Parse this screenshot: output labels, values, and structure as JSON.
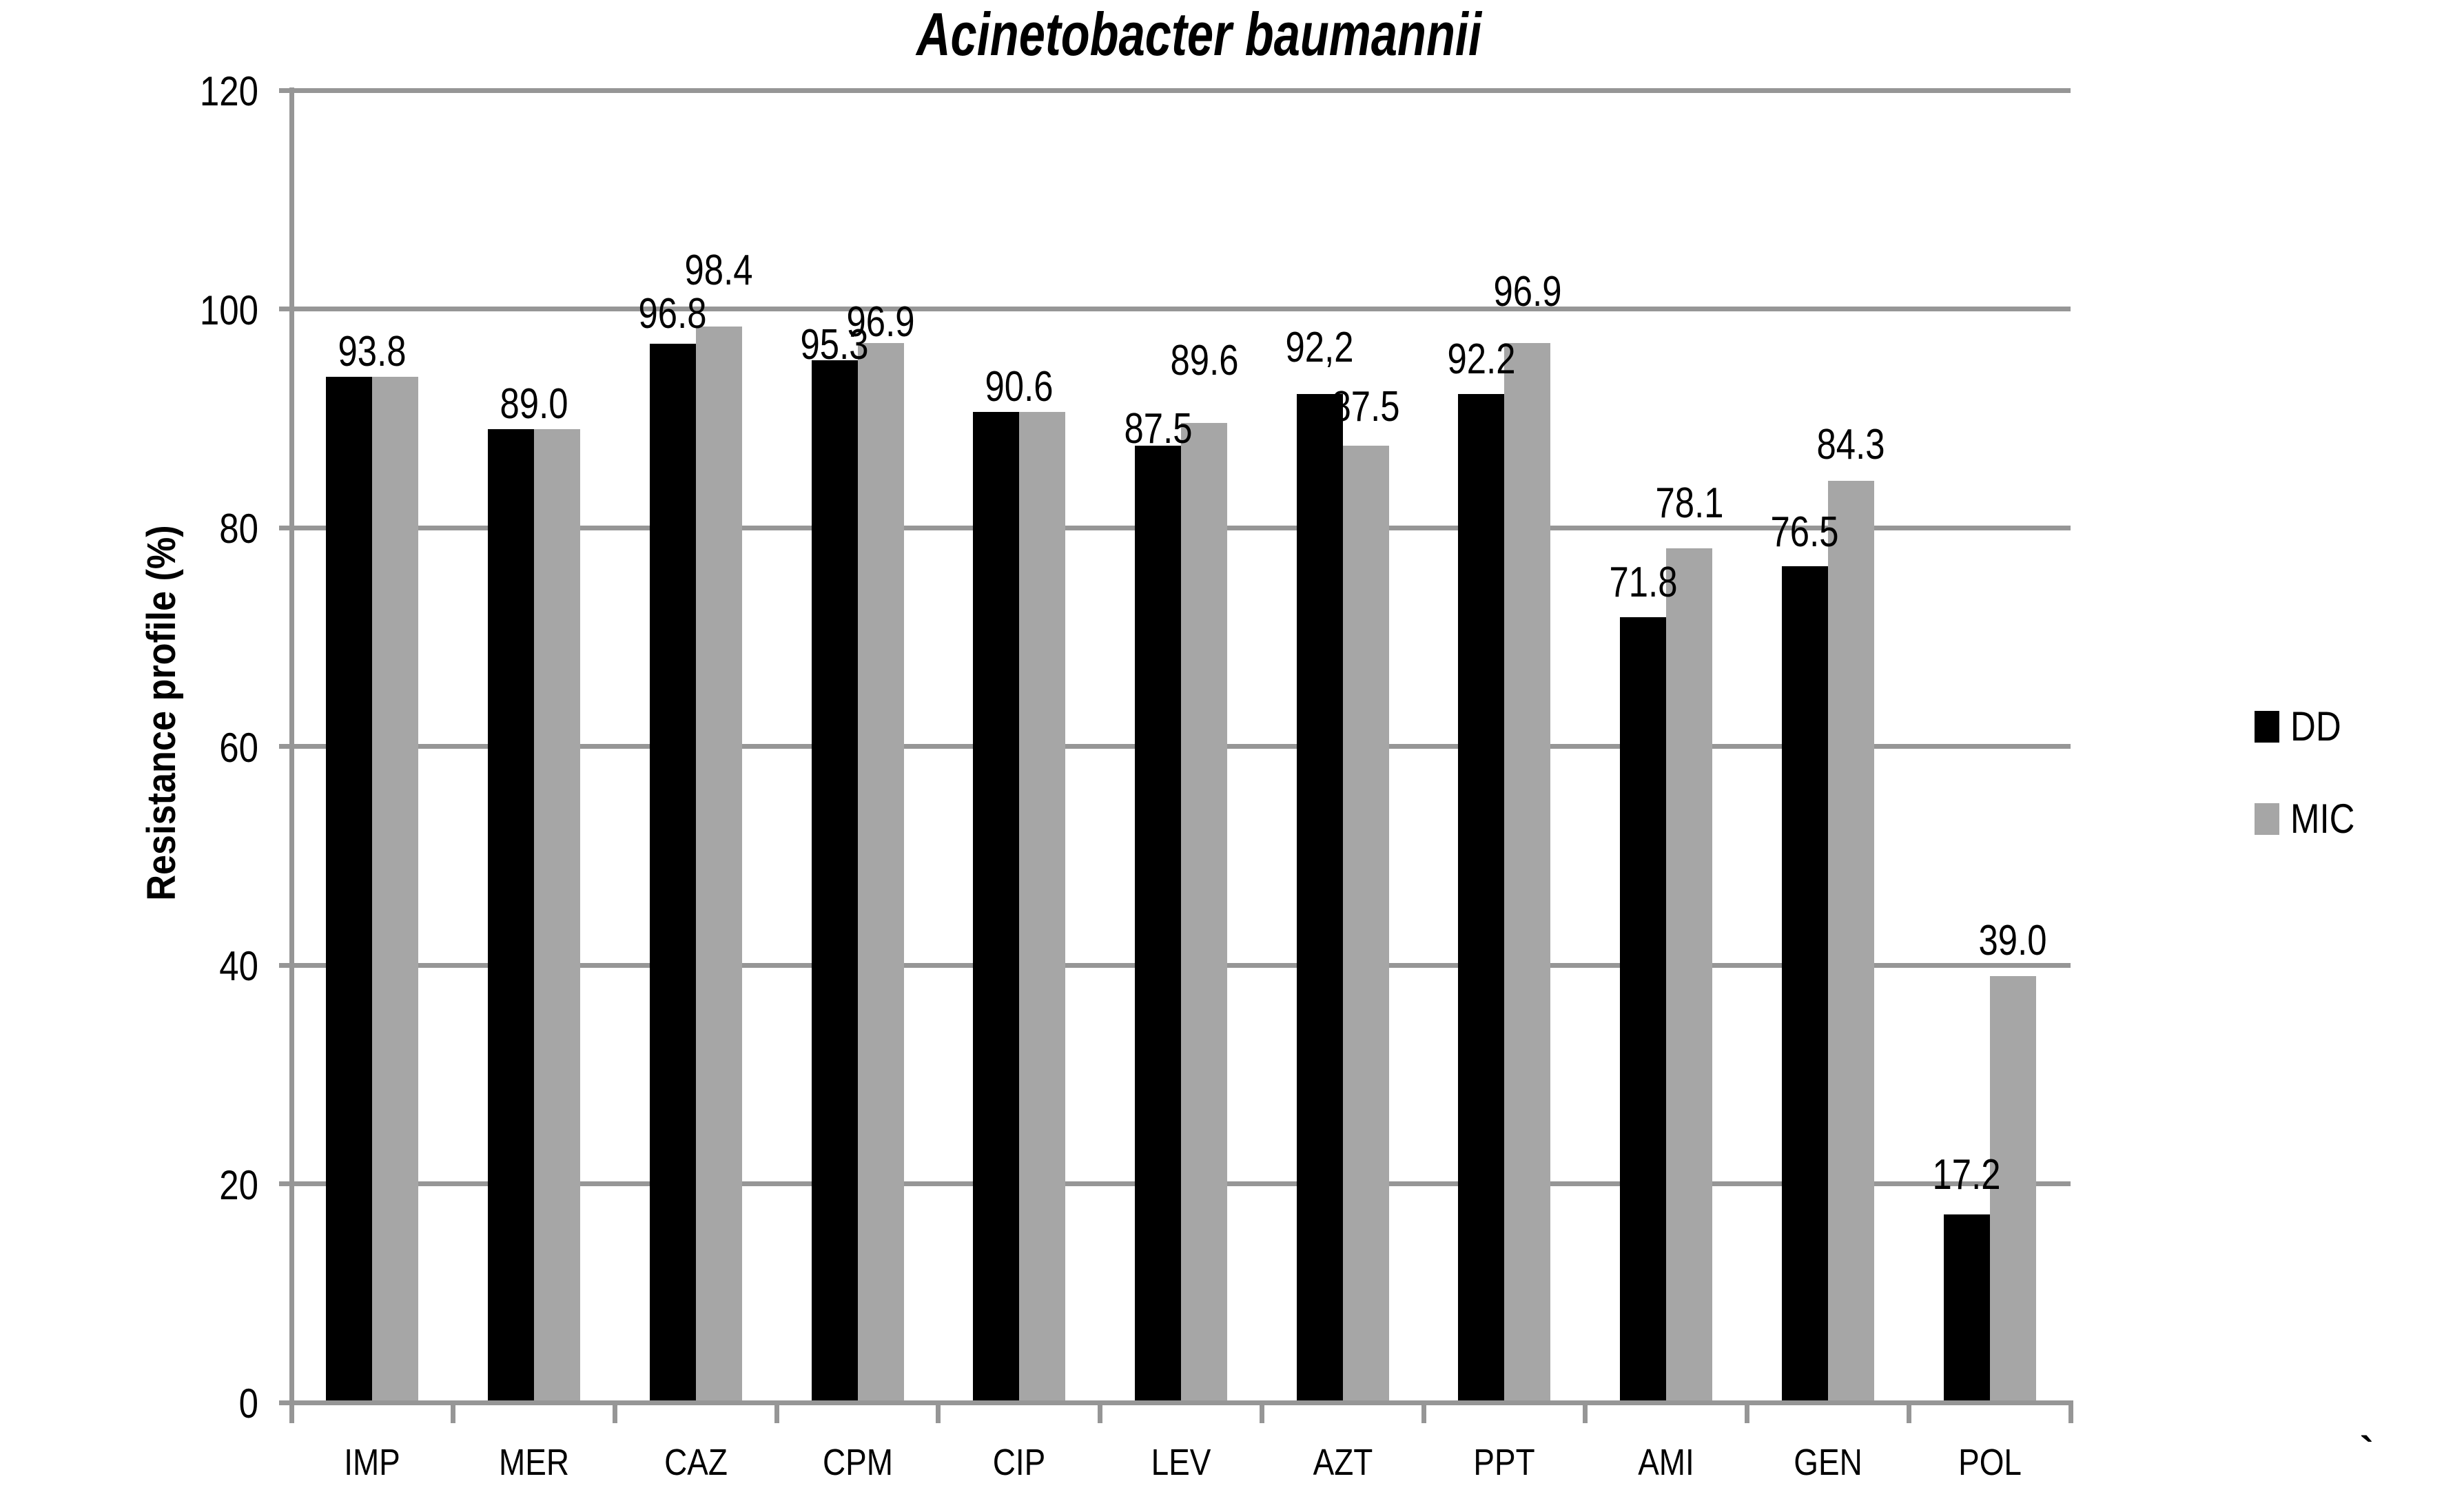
{
  "chart_data": {
    "type": "bar",
    "title": "Acinetobacter baumannii",
    "ylabel": "Resistance profile (%)",
    "xlabel": "",
    "categories": [
      "IMP",
      "MER",
      "CAZ",
      "CPM",
      "CIP",
      "LEV",
      "AZT",
      "PPT",
      "AMI",
      "GEN",
      "POL"
    ],
    "series": [
      {
        "name": "DD",
        "color": "#000000",
        "values": [
          93.8,
          89.0,
          96.8,
          95.3,
          90.6,
          87.5,
          92.2,
          92.2,
          71.8,
          76.5,
          17.2
        ]
      },
      {
        "name": "MIC",
        "color": "#a6a6a6",
        "values": [
          93.8,
          89.0,
          98.4,
          96.9,
          90.6,
          89.6,
          87.5,
          96.9,
          78.1,
          84.3,
          39.0
        ]
      }
    ],
    "data_labels": [
      {
        "shared": "93.8",
        "gap": 17
      },
      {
        "shared": "89.0",
        "gap": 17
      },
      {
        "dd": "96.8",
        "dd_gap": 24,
        "mic": "98.4",
        "mic_gap": 62
      },
      {
        "dd": "95.3",
        "dd_gap": 3,
        "mic": "96.9",
        "mic_gap": 11
      },
      {
        "shared": "90.6",
        "gap": 17
      },
      {
        "dd": "87.5",
        "dd_gap": 5,
        "mic": "89.6",
        "mic_gap": 71
      },
      {
        "dd": "92,2",
        "dd_gap": 48,
        "mic": "87.5",
        "mic_gap": 37
      },
      {
        "dd": "92.2",
        "dd_gap": 31,
        "mic": "96.9",
        "mic_gap": 55
      },
      {
        "dd": "71.8",
        "dd_gap": 31,
        "mic": "78.1",
        "mic_gap": 46
      },
      {
        "dd": "76.5",
        "dd_gap": 30,
        "mic": "84.3",
        "mic_gap": 33
      },
      {
        "dd": "17.2",
        "dd_gap": 38,
        "mic": "39.0",
        "mic_gap": 32
      }
    ],
    "ylim": [
      0,
      120
    ],
    "ytick_step": 20,
    "yticks": [
      "0",
      "20",
      "40",
      "60",
      "80",
      "100",
      "120"
    ],
    "grid": true,
    "legend_position": "right",
    "gridline_color": "#969696",
    "background": "#ffffff",
    "stray_mark": "`"
  }
}
